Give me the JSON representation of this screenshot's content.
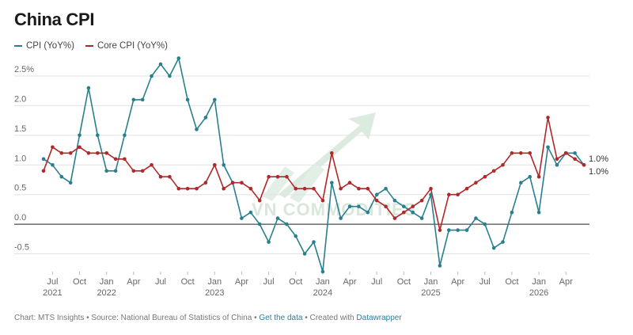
{
  "title": "China CPI",
  "legend": {
    "cpi": "CPI (YoY%)",
    "core": "Core CPI (YoY%)"
  },
  "footer": {
    "prefix": "Chart: MTS Insights • Source: National Bureau of Statistics of China • ",
    "get_data": "Get the data",
    "mid": " • Created with ",
    "datawrapper": "Datawrapper"
  },
  "watermark": "VN COMMODITIES",
  "colors": {
    "cpi": "#2a7f8e",
    "core": "#b0282a"
  },
  "chart_data": {
    "type": "line",
    "title": "China CPI",
    "x_start": "2021-06",
    "x": [
      "2021-06",
      "2021-07",
      "2021-08",
      "2021-09",
      "2021-10",
      "2021-11",
      "2021-12",
      "2022-01",
      "2022-02",
      "2022-03",
      "2022-04",
      "2022-05",
      "2022-06",
      "2022-07",
      "2022-08",
      "2022-09",
      "2022-10",
      "2022-11",
      "2022-12",
      "2023-01",
      "2023-02",
      "2023-03",
      "2023-04",
      "2023-05",
      "2023-06",
      "2023-07",
      "2023-08",
      "2023-09",
      "2023-10",
      "2023-11",
      "2023-12",
      "2024-01",
      "2024-02",
      "2024-03",
      "2024-04",
      "2024-05",
      "2024-06",
      "2024-07",
      "2024-08",
      "2024-09",
      "2024-10",
      "2024-11",
      "2024-12",
      "2025-01",
      "2025-02",
      "2025-03",
      "2025-04",
      "2025-05",
      "2025-06",
      "2025-07",
      "2025-08",
      "2025-09",
      "2025-10",
      "2025-11",
      "2025-12",
      "2026-01",
      "2026-02",
      "2026-03",
      "2026-04",
      "2026-05",
      "2026-06"
    ],
    "series": [
      {
        "name": "CPI (YoY%)",
        "values": [
          1.1,
          1.0,
          0.8,
          0.7,
          1.5,
          2.3,
          1.5,
          0.9,
          0.9,
          1.5,
          2.1,
          2.1,
          2.5,
          2.7,
          2.5,
          2.8,
          2.1,
          1.6,
          1.8,
          2.1,
          1.0,
          0.7,
          0.1,
          0.2,
          0.0,
          -0.3,
          0.1,
          0.0,
          -0.2,
          -0.5,
          -0.3,
          -0.8,
          0.7,
          0.1,
          0.3,
          0.3,
          0.2,
          0.5,
          0.6,
          0.4,
          0.3,
          0.2,
          0.1,
          0.5,
          -0.7,
          -0.1,
          -0.1,
          -0.1,
          0.1,
          0.0,
          -0.4,
          -0.3,
          0.2,
          0.7,
          0.8,
          0.2,
          1.3,
          1.0,
          1.2,
          1.2,
          1.0
        ]
      },
      {
        "name": "Core CPI (YoY%)",
        "values": [
          0.9,
          1.3,
          1.2,
          1.2,
          1.3,
          1.2,
          1.2,
          1.2,
          1.1,
          1.1,
          0.9,
          0.9,
          1.0,
          0.8,
          0.8,
          0.6,
          0.6,
          0.6,
          0.7,
          1.0,
          0.6,
          0.7,
          0.7,
          0.6,
          0.4,
          0.8,
          0.8,
          0.8,
          0.6,
          0.6,
          0.6,
          0.4,
          1.2,
          0.6,
          0.7,
          0.6,
          0.6,
          0.4,
          0.3,
          0.1,
          0.2,
          0.3,
          0.4,
          0.6,
          -0.1,
          0.5,
          0.5,
          0.6,
          0.7,
          0.8,
          0.9,
          1.0,
          1.2,
          1.2,
          1.2,
          0.8,
          1.8,
          1.1,
          1.2,
          1.1,
          1.0
        ]
      }
    ],
    "ylim": [
      -0.8,
      2.8
    ],
    "y_ticks": [
      {
        "v": 2.5,
        "label": "2.5%"
      },
      {
        "v": 2.0,
        "label": "2.0"
      },
      {
        "v": 1.5,
        "label": "1.5"
      },
      {
        "v": 1.0,
        "label": "1.0"
      },
      {
        "v": 0.5,
        "label": "0.5"
      },
      {
        "v": 0.0,
        "label": "0.0"
      },
      {
        "v": -0.5,
        "label": "-0.5"
      }
    ],
    "x_ticks": [
      {
        "x": "2021-07",
        "month": "Jul",
        "year": "2021"
      },
      {
        "x": "2021-10",
        "month": "Oct",
        "year": ""
      },
      {
        "x": "2022-01",
        "month": "Jan",
        "year": "2022"
      },
      {
        "x": "2022-04",
        "month": "Apr",
        "year": ""
      },
      {
        "x": "2022-07",
        "month": "Jul",
        "year": ""
      },
      {
        "x": "2022-10",
        "month": "Oct",
        "year": ""
      },
      {
        "x": "2023-01",
        "month": "Jan",
        "year": "2023"
      },
      {
        "x": "2023-04",
        "month": "Apr",
        "year": ""
      },
      {
        "x": "2023-07",
        "month": "Jul",
        "year": ""
      },
      {
        "x": "2023-10",
        "month": "Oct",
        "year": ""
      },
      {
        "x": "2024-01",
        "month": "Jan",
        "year": "2024"
      },
      {
        "x": "2024-04",
        "month": "Apr",
        "year": ""
      },
      {
        "x": "2024-07",
        "month": "Jul",
        "year": ""
      },
      {
        "x": "2024-10",
        "month": "Oct",
        "year": ""
      },
      {
        "x": "2025-01",
        "month": "Jan",
        "year": "2025"
      },
      {
        "x": "2025-04",
        "month": "Apr",
        "year": ""
      },
      {
        "x": "2025-07",
        "month": "Jul",
        "year": ""
      },
      {
        "x": "2025-10",
        "month": "Oct",
        "year": ""
      },
      {
        "x": "2026-01",
        "month": "Jan",
        "year": "2026"
      },
      {
        "x": "2026-04",
        "month": "Apr",
        "year": ""
      }
    ],
    "end_labels": [
      {
        "text": "1.0%"
      },
      {
        "text": "1.0%"
      }
    ],
    "grid": true,
    "legend_position": "top-left"
  }
}
